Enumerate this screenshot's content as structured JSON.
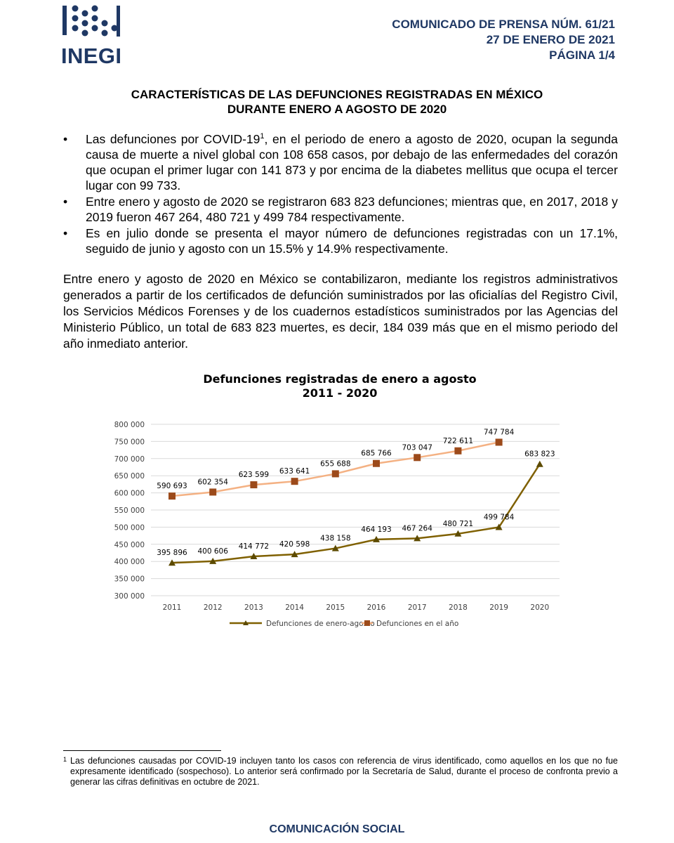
{
  "header": {
    "logo_text": "INEGI",
    "lines": [
      "COMUNICADO DE PRENSA NÚM. 61/21",
      "27 DE ENERO DE 2021",
      "PÁGINA 1/4"
    ]
  },
  "title": [
    "CARACTERÍSTICAS DE LAS DEFUNCIONES REGISTRADAS EN MÉXICO",
    "DURANTE ENERO A AGOSTO DE 2020"
  ],
  "bullets": [
    {
      "lead": "Las defunciones por COVID-19",
      "note": "1",
      "rest": ", en el periodo de enero a agosto de 2020, ocupan la segunda causa de muerte a nivel global con 108 658 casos, por debajo de las enfermedades del corazón que ocupan el primer lugar con 141 873 y por encima de la diabetes mellitus que ocupa el tercer lugar con 99 733."
    },
    {
      "lead": "Entre enero y agosto de 2020 se registraron 683 823 defunciones; mientras que, en 2017, 2018 y 2019 fueron 467 264, 480 721 y 499 784 respectivamente."
    },
    {
      "lead": "Es en julio donde se presenta el mayor número de defunciones registradas con un 17.1%, seguido de junio y agosto con un 15.5% y 14.9% respectivamente."
    }
  ],
  "paragraph": "Entre enero y agosto de 2020 en México se contabilizaron, mediante los registros administrativos generados a partir de los certificados de defunción suministrados por las oficialías del Registro Civil, los Servicios Médicos Forenses y de los cuadernos estadísticos suministrados por las Agencias del Ministerio Público, un total de 683 823 muertes, es decir, 184 039 más que en el mismo periodo del año inmediato anterior.",
  "chart_data": {
    "type": "line",
    "title": "Defunciones registradas de enero a agosto",
    "subtitle": "2011 - 2020",
    "categories": [
      "2011",
      "2012",
      "2013",
      "2014",
      "2015",
      "2016",
      "2017",
      "2018",
      "2019",
      "2020"
    ],
    "series": [
      {
        "name": "Defunciones de enero-agosto",
        "color": "#7f6000",
        "marker_color": "#5c4a00",
        "marker": "triangle",
        "values": [
          395896,
          400606,
          414772,
          420598,
          438158,
          464193,
          467264,
          480721,
          499784,
          683823
        ],
        "value_labels": [
          "395 896",
          "400 606",
          "414 772",
          "420 598",
          "438 158",
          "464 193",
          "467 264",
          "480 721",
          "499 784",
          "683 823"
        ]
      },
      {
        "name": "Defunciones en el año",
        "color": "#f4b183",
        "marker_color": "#9c4a1a",
        "marker": "square",
        "values": [
          590693,
          602354,
          623599,
          633641,
          655688,
          685766,
          703047,
          722611,
          747784,
          null
        ],
        "value_labels": [
          "590 693",
          "602 354",
          "623 599",
          "633 641",
          "655 688",
          "685 766",
          "703 047",
          "722 611",
          "747 784",
          null
        ]
      }
    ],
    "ylim": [
      300000,
      800000
    ],
    "yticks": [
      {
        "value": 300000,
        "label": "300 000"
      },
      {
        "value": 350000,
        "label": "350 000"
      },
      {
        "value": 400000,
        "label": "400 000"
      },
      {
        "value": 450000,
        "label": "450 000"
      },
      {
        "value": 500000,
        "label": "500 000"
      },
      {
        "value": 550000,
        "label": "550 000"
      },
      {
        "value": 600000,
        "label": "600 000"
      },
      {
        "value": 650000,
        "label": "650 000"
      },
      {
        "value": 700000,
        "label": "700 000"
      },
      {
        "value": 750000,
        "label": "750 000"
      },
      {
        "value": 800000,
        "label": "800 000"
      }
    ],
    "grid": true,
    "legend": "bottom"
  },
  "footnote": {
    "marker": "1",
    "text": "Las defunciones causadas por COVID-19 incluyen tanto los casos con referencia de virus identificado, como aquellos en los que no fue expresamente identificado (sospechoso). Lo anterior será confirmado por la Secretaría de Salud, durante el proceso de confronta previo a generar las cifras definitivas en octubre de 2021."
  },
  "footer": "COMUNICACIÓN SOCIAL"
}
